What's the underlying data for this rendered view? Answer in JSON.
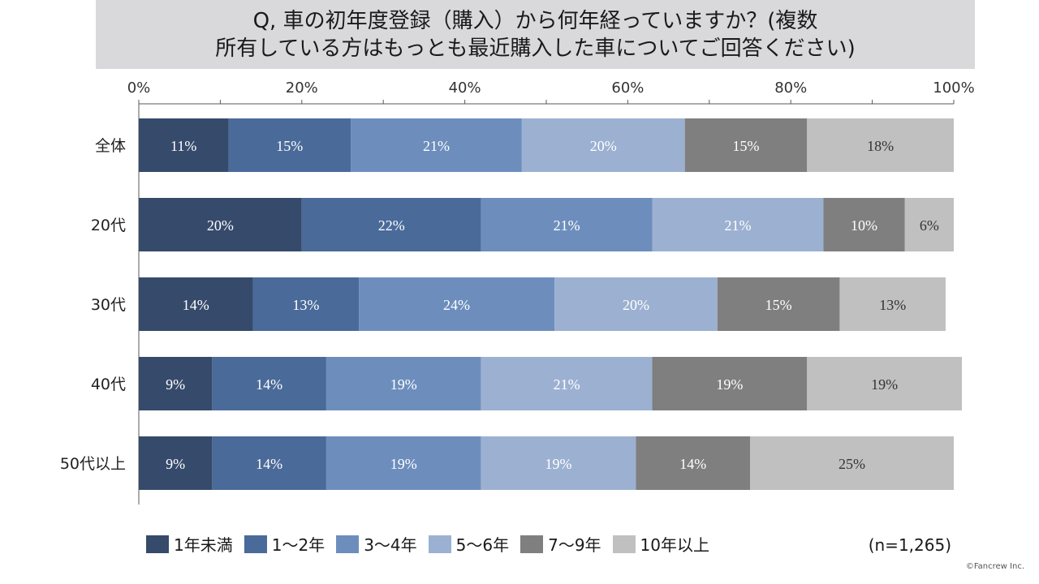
{
  "title": {
    "line1": "Q, 車の初年度登録（購入）から何年経っていますか？(複数",
    "line2": "所有している方はもっとも最近購入した車についてご回答ください)"
  },
  "note": "(n=1,265)",
  "copyright": "©Fancrew Inc.",
  "chart_data": {
    "type": "bar",
    "orientation": "horizontal",
    "stacked": true,
    "xlim": [
      0,
      100
    ],
    "x_ticks": [
      "0%",
      "20%",
      "40%",
      "60%",
      "80%",
      "100%"
    ],
    "categories": [
      "全体",
      "20代",
      "30代",
      "40代",
      "50代以上"
    ],
    "series": [
      {
        "name": "1年未満",
        "color": "#364a6b",
        "values": [
          11,
          20,
          14,
          9,
          9
        ],
        "labels": [
          "11%",
          "20%",
          "14%",
          "9%",
          "9%"
        ]
      },
      {
        "name": "1～2年",
        "color": "#4a6a99",
        "values": [
          15,
          22,
          13,
          14,
          14
        ],
        "labels": [
          "15%",
          "22%",
          "13%",
          "14%",
          "14%"
        ]
      },
      {
        "name": "3～4年",
        "color": "#6d8ebd",
        "values": [
          21,
          21,
          24,
          19,
          19
        ],
        "labels": [
          "21%",
          "21%",
          "24%",
          "19%",
          "19%"
        ]
      },
      {
        "name": "5～6年",
        "color": "#9cb1d1",
        "values": [
          20,
          21,
          20,
          21,
          19
        ],
        "labels": [
          "20%",
          "21%",
          "20%",
          "21%",
          "19%"
        ]
      },
      {
        "name": "7～9年",
        "color": "#7f7f7f",
        "values": [
          15,
          10,
          15,
          19,
          14
        ],
        "labels": [
          "15%",
          "10%",
          "15%",
          "19%",
          "14%"
        ]
      },
      {
        "name": "10年以上",
        "color": "#c0c0c0",
        "values": [
          18,
          6,
          13,
          19,
          25
        ],
        "labels": [
          "18%",
          "6%",
          "13%",
          "19%",
          "25%"
        ]
      }
    ],
    "label_colors": [
      "#ffffff",
      "#ffffff",
      "#ffffff",
      "#ffffff",
      "#ffffff",
      "#333333"
    ],
    "legend_position": "bottom",
    "grid": false
  }
}
